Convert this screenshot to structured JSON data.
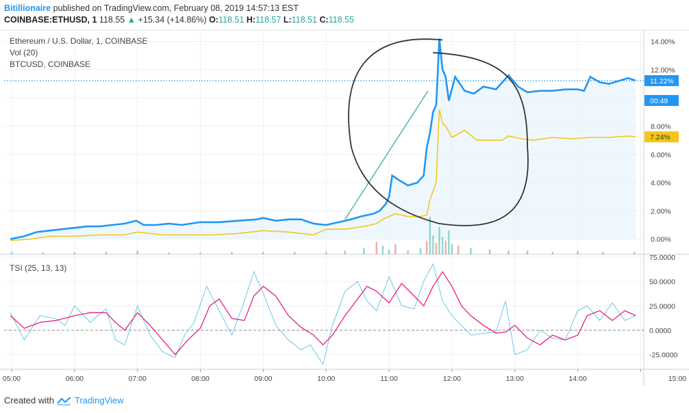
{
  "header": {
    "publisher": "Bitillionaire",
    "published_text": "published on TradingView.com, February 08, 2019 14:57:13 EST",
    "symbol": "COINBASE:ETHUSD, 1",
    "price": "118.55",
    "change_arrow": "▲",
    "change": "+15.34 (+14.86%)",
    "o_label": "O:",
    "o_value": "118.51",
    "h_label": "H:",
    "h_value": "118.57",
    "l_label": "L:",
    "l_value": "118.51",
    "c_label": "C:",
    "c_value": "118.55"
  },
  "legend": {
    "main_title": "Ethereum / U.S. Dollar, 1, COINBASE",
    "vol": "Vol (20)",
    "compare": "BTCUSD, COINBASE",
    "tsi": "TSI (25, 13, 13)"
  },
  "footer": {
    "created_with": "Created with",
    "brand": "TradingView"
  },
  "colors": {
    "eth": "#2196f3",
    "btc": "#f5c518",
    "tsi": "#e91e80",
    "tsi_signal": "#6ec6e8",
    "volume_up": "#80cbc4",
    "volume_down": "#ef9a9a",
    "annotation": "#333333",
    "trendline": "#26a69a"
  },
  "chart_data": [
    {
      "type": "line",
      "panel": "price",
      "y_unit": "%",
      "ylim": [
        -0.5,
        14.8
      ],
      "y_ticks": [
        "14.00%",
        "12.00%",
        "10.00%",
        "8.00%",
        "6.00%",
        "4.00%",
        "2.00%",
        "0.00%"
      ],
      "y_tick_values": [
        14,
        12,
        10,
        8,
        6,
        4,
        2,
        0
      ],
      "x_ticks": [
        "05:00",
        "06:00",
        "07:00",
        "08:00",
        "09:00",
        "10:00",
        "11:00",
        "12:00",
        "13:00",
        "14:00",
        "15:00"
      ],
      "price_labels": [
        {
          "text": "11.22%",
          "value": 11.22,
          "color": "#2196f3"
        },
        {
          "text": "00:49",
          "value": 10.3,
          "color": "#2196f3"
        },
        {
          "text": "7.24%",
          "value": 7.24,
          "color": "#f5c518"
        }
      ],
      "series": [
        {
          "key": "eth",
          "x_hours": [
            4.98,
            5.2,
            5.4,
            5.6,
            5.8,
            6.0,
            6.2,
            6.4,
            6.6,
            6.8,
            6.98,
            7.1,
            7.3,
            7.5,
            7.7,
            8.0,
            8.3,
            8.6,
            8.9,
            9.0,
            9.2,
            9.4,
            9.6,
            9.8,
            10.0,
            10.2,
            10.4,
            10.55,
            10.65,
            10.75,
            10.85,
            10.95,
            11.0,
            11.05,
            11.15,
            11.3,
            11.45,
            11.55,
            11.6,
            11.65,
            11.7,
            11.75,
            11.8,
            11.85,
            11.9,
            11.95,
            12.05,
            12.2,
            12.35,
            12.5,
            12.7,
            12.9,
            13.05,
            13.2,
            13.4,
            13.6,
            13.8,
            14.0,
            14.1,
            14.2,
            14.35,
            14.5,
            14.65,
            14.8,
            14.92
          ],
          "values": [
            0.0,
            0.2,
            0.5,
            0.6,
            0.7,
            0.8,
            0.9,
            0.9,
            1.0,
            1.1,
            1.3,
            1.0,
            1.0,
            1.1,
            1.0,
            1.2,
            1.2,
            1.3,
            1.4,
            1.5,
            1.3,
            1.4,
            1.4,
            1.1,
            1.0,
            1.2,
            1.4,
            1.6,
            1.7,
            1.8,
            2.0,
            2.5,
            3.0,
            4.5,
            4.2,
            3.8,
            4.0,
            4.5,
            6.5,
            7.5,
            9.0,
            9.5,
            14.2,
            12.0,
            11.5,
            9.8,
            11.5,
            10.5,
            10.3,
            10.8,
            10.6,
            11.6,
            10.8,
            10.4,
            10.5,
            10.5,
            10.6,
            10.6,
            10.5,
            11.5,
            11.1,
            11.0,
            11.2,
            11.4,
            11.22
          ]
        },
        {
          "key": "btc",
          "x_hours": [
            4.98,
            5.3,
            5.6,
            6.0,
            6.4,
            6.8,
            7.0,
            7.4,
            7.8,
            8.2,
            8.6,
            9.0,
            9.4,
            9.8,
            10.0,
            10.3,
            10.6,
            10.8,
            10.9,
            11.0,
            11.1,
            11.3,
            11.5,
            11.6,
            11.65,
            11.75,
            11.8,
            11.85,
            11.9,
            12.0,
            12.2,
            12.4,
            12.6,
            12.8,
            12.9,
            13.1,
            13.3,
            13.6,
            13.9,
            14.2,
            14.5,
            14.8,
            14.92
          ],
          "values": [
            -0.1,
            0.0,
            0.2,
            0.2,
            0.3,
            0.3,
            0.5,
            0.3,
            0.3,
            0.3,
            0.4,
            0.6,
            0.5,
            0.3,
            0.7,
            0.7,
            0.9,
            1.1,
            1.4,
            1.6,
            1.8,
            1.6,
            1.6,
            1.7,
            2.8,
            4.0,
            9.2,
            8.2,
            8.0,
            7.2,
            7.7,
            7.0,
            7.0,
            7.0,
            7.3,
            7.1,
            7.0,
            7.2,
            7.1,
            7.2,
            7.2,
            7.3,
            7.24
          ]
        }
      ]
    },
    {
      "type": "line",
      "panel": "tsi",
      "ylim": [
        -40,
        75
      ],
      "y_ticks": [
        "75.0000",
        "50.0000",
        "25.0000",
        "0.0000",
        "-25.0000"
      ],
      "y_tick_values": [
        75,
        50,
        25,
        0,
        -25
      ],
      "series": [
        {
          "key": "tsi",
          "x_hours": [
            4.98,
            5.2,
            5.45,
            5.7,
            6.0,
            6.25,
            6.5,
            6.65,
            6.8,
            7.0,
            7.2,
            7.4,
            7.6,
            7.8,
            8.0,
            8.15,
            8.3,
            8.5,
            8.7,
            8.85,
            9.0,
            9.2,
            9.4,
            9.6,
            9.8,
            9.95,
            10.1,
            10.3,
            10.5,
            10.65,
            10.8,
            11.0,
            11.2,
            11.4,
            11.55,
            11.7,
            11.85,
            12.0,
            12.15,
            12.3,
            12.5,
            12.7,
            12.85,
            13.0,
            13.2,
            13.4,
            13.6,
            13.8,
            14.0,
            14.15,
            14.35,
            14.55,
            14.75,
            14.92
          ],
          "values": [
            15,
            2,
            8,
            10,
            15,
            18,
            18,
            8,
            0,
            18,
            5,
            -10,
            -25,
            -10,
            2,
            25,
            32,
            12,
            10,
            35,
            45,
            35,
            15,
            3,
            -5,
            -15,
            -5,
            15,
            32,
            45,
            40,
            28,
            48,
            35,
            25,
            45,
            60,
            45,
            25,
            15,
            5,
            -3,
            -2,
            5,
            -8,
            -15,
            -5,
            -10,
            -5,
            15,
            20,
            10,
            20,
            15
          ]
        },
        {
          "key": "tsi_signal",
          "x_hours": [
            4.98,
            5.2,
            5.45,
            5.7,
            5.85,
            6.0,
            6.25,
            6.5,
            6.65,
            6.8,
            7.0,
            7.2,
            7.4,
            7.6,
            7.75,
            7.9,
            8.1,
            8.3,
            8.5,
            8.7,
            8.85,
            9.0,
            9.2,
            9.4,
            9.6,
            9.75,
            9.95,
            10.1,
            10.3,
            10.5,
            10.65,
            10.8,
            11.0,
            11.2,
            11.4,
            11.55,
            11.7,
            11.85,
            12.0,
            12.15,
            12.3,
            12.5,
            12.7,
            12.85,
            13.0,
            13.2,
            13.4,
            13.6,
            13.8,
            14.0,
            14.15,
            14.35,
            14.55,
            14.75,
            14.92
          ],
          "values": [
            18,
            -10,
            15,
            12,
            5,
            25,
            8,
            22,
            -10,
            -15,
            25,
            -5,
            -22,
            -28,
            -5,
            8,
            45,
            20,
            -5,
            30,
            60,
            38,
            5,
            -10,
            -20,
            -15,
            -35,
            5,
            40,
            50,
            30,
            20,
            55,
            25,
            22,
            50,
            68,
            30,
            15,
            5,
            -5,
            -3,
            -2,
            30,
            -25,
            -20,
            0,
            -8,
            -10,
            20,
            25,
            10,
            28,
            10,
            15
          ]
        }
      ]
    },
    {
      "type": "bar",
      "panel": "volume",
      "note": "relative volume bars",
      "x_hours": [
        5.0,
        5.5,
        6.0,
        6.5,
        7.0,
        7.5,
        8.0,
        8.5,
        9.0,
        9.5,
        10.0,
        10.3,
        10.6,
        10.8,
        10.9,
        11.0,
        11.1,
        11.3,
        11.5,
        11.6,
        11.65,
        11.7,
        11.75,
        11.8,
        11.85,
        11.9,
        11.95,
        12.0,
        12.1,
        12.3,
        12.6,
        12.9,
        13.2,
        13.6,
        14.0,
        14.4,
        14.9
      ],
      "values": [
        4,
        3,
        3,
        4,
        6,
        3,
        3,
        4,
        4,
        4,
        4,
        6,
        10,
        20,
        14,
        8,
        16,
        6,
        10,
        22,
        60,
        30,
        18,
        44,
        28,
        22,
        38,
        16,
        14,
        10,
        8,
        6,
        6,
        4,
        5,
        4,
        4
      ]
    }
  ]
}
